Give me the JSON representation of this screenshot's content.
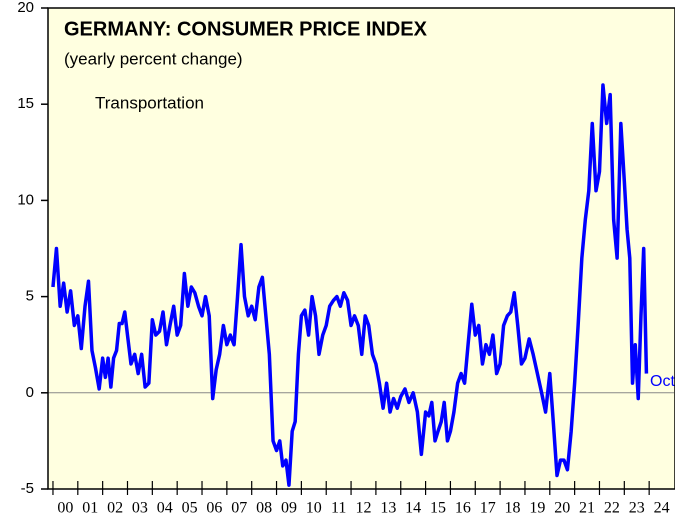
{
  "chart_data": {
    "type": "line",
    "title": "GERMANY: CONSUMER PRICE INDEX",
    "subtitle": "(yearly percent change)",
    "annotations": [
      "Transportation",
      "Oct"
    ],
    "xlim": [
      1999.8,
      2025
    ],
    "ylim": [
      -5,
      20
    ],
    "yticks": [
      -5,
      0,
      5,
      10,
      15,
      20
    ],
    "xticks": [
      {
        "value": 2000,
        "label": "00"
      },
      {
        "value": 2001,
        "label": "01"
      },
      {
        "value": 2002,
        "label": "02"
      },
      {
        "value": 2003,
        "label": "03"
      },
      {
        "value": 2004,
        "label": "04"
      },
      {
        "value": 2005,
        "label": "05"
      },
      {
        "value": 2006,
        "label": "06"
      },
      {
        "value": 2007,
        "label": "07"
      },
      {
        "value": 2008,
        "label": "08"
      },
      {
        "value": 2009,
        "label": "09"
      },
      {
        "value": 2010,
        "label": "10"
      },
      {
        "value": 2011,
        "label": "11"
      },
      {
        "value": 2012,
        "label": "12"
      },
      {
        "value": 2013,
        "label": "13"
      },
      {
        "value": 2014,
        "label": "14"
      },
      {
        "value": 2015,
        "label": "15"
      },
      {
        "value": 2016,
        "label": "16"
      },
      {
        "value": 2017,
        "label": "17"
      },
      {
        "value": 2018,
        "label": "18"
      },
      {
        "value": 2019,
        "label": "19"
      },
      {
        "value": 2020,
        "label": "20"
      },
      {
        "value": 2021,
        "label": "21"
      },
      {
        "value": 2022,
        "label": "22"
      },
      {
        "value": 2023,
        "label": "23"
      },
      {
        "value": 2024,
        "label": "24"
      }
    ],
    "zero_line": true,
    "series": [
      {
        "color": "#0000ff",
        "x": [
          2000.0,
          2000.14,
          2000.29,
          2000.43,
          2000.57,
          2000.71,
          2000.86,
          2001.0,
          2001.14,
          2001.29,
          2001.43,
          2001.57,
          2001.71,
          2001.86,
          2002.0,
          2002.11,
          2002.22,
          2002.33,
          2002.44,
          2002.56,
          2002.67,
          2002.78,
          2002.89,
          2003.0,
          2003.14,
          2003.29,
          2003.43,
          2003.57,
          2003.71,
          2003.86,
          2004.0,
          2004.14,
          2004.29,
          2004.43,
          2004.57,
          2004.71,
          2004.86,
          2005.0,
          2005.14,
          2005.29,
          2005.43,
          2005.57,
          2005.71,
          2005.86,
          2006.0,
          2006.14,
          2006.29,
          2006.43,
          2006.57,
          2006.71,
          2006.86,
          2007.0,
          2007.14,
          2007.29,
          2007.43,
          2007.57,
          2007.71,
          2007.86,
          2008.0,
          2008.14,
          2008.29,
          2008.43,
          2008.57,
          2008.71,
          2008.86,
          2009.0,
          2009.13,
          2009.25,
          2009.38,
          2009.5,
          2009.63,
          2009.75,
          2009.88,
          2010.0,
          2010.14,
          2010.29,
          2010.43,
          2010.57,
          2010.71,
          2010.86,
          2011.0,
          2011.14,
          2011.29,
          2011.43,
          2011.57,
          2011.71,
          2011.86,
          2012.0,
          2012.14,
          2012.29,
          2012.43,
          2012.57,
          2012.71,
          2012.86,
          2013.0,
          2013.14,
          2013.29,
          2013.43,
          2013.57,
          2013.71,
          2013.86,
          2014.0,
          2014.17,
          2014.33,
          2014.5,
          2014.67,
          2014.83,
          2015.0,
          2015.13,
          2015.25,
          2015.38,
          2015.5,
          2015.63,
          2015.75,
          2015.88,
          2016.0,
          2016.14,
          2016.29,
          2016.43,
          2016.57,
          2016.71,
          2016.86,
          2017.0,
          2017.14,
          2017.29,
          2017.43,
          2017.57,
          2017.71,
          2017.86,
          2018.0,
          2018.14,
          2018.29,
          2018.43,
          2018.57,
          2018.71,
          2018.86,
          2019.0,
          2019.17,
          2019.33,
          2019.5,
          2019.67,
          2019.83,
          2020.0,
          2020.14,
          2020.29,
          2020.43,
          2020.57,
          2020.71,
          2020.86,
          2021.0,
          2021.14,
          2021.29,
          2021.43,
          2021.57,
          2021.71,
          2021.86,
          2022.0,
          2022.14,
          2022.29,
          2022.43,
          2022.57,
          2022.71,
          2022.86,
          2023.0,
          2023.11,
          2023.22,
          2023.33,
          2023.44,
          2023.56,
          2023.67,
          2023.78,
          2023.89
        ],
        "values": [
          5.5,
          7.5,
          4.5,
          5.7,
          4.2,
          5.3,
          3.5,
          4.0,
          2.3,
          4.5,
          5.8,
          2.2,
          1.3,
          0.2,
          1.8,
          0.8,
          1.8,
          0.3,
          1.8,
          2.2,
          3.6,
          3.6,
          4.2,
          3.0,
          1.5,
          2.0,
          1.0,
          2.0,
          0.3,
          0.5,
          3.8,
          3.0,
          3.2,
          4.2,
          2.5,
          3.5,
          4.5,
          3.0,
          3.5,
          6.2,
          4.5,
          5.5,
          5.2,
          4.5,
          4.0,
          5.0,
          4.0,
          -0.3,
          1.2,
          2.0,
          3.5,
          2.5,
          3.0,
          2.5,
          5.0,
          7.7,
          5.0,
          4.0,
          4.5,
          3.8,
          5.5,
          6.0,
          4.0,
          2.0,
          -2.5,
          -3.0,
          -2.5,
          -3.8,
          -3.5,
          -4.8,
          -2.0,
          -1.5,
          2.0,
          4.0,
          4.3,
          3.0,
          5.0,
          4.0,
          2.0,
          3.0,
          3.5,
          4.5,
          4.8,
          5.0,
          4.5,
          5.2,
          4.8,
          3.5,
          4.0,
          3.5,
          2.0,
          4.0,
          3.5,
          2.0,
          1.5,
          0.5,
          -0.8,
          0.5,
          -1.0,
          -0.3,
          -0.8,
          -0.2,
          0.2,
          -0.5,
          0.0,
          -1.0,
          -3.2,
          -1.0,
          -1.2,
          -0.5,
          -2.5,
          -2.0,
          -1.5,
          -0.5,
          -2.5,
          -2.0,
          -1.0,
          0.5,
          1.0,
          0.5,
          2.5,
          4.6,
          3.0,
          3.5,
          1.5,
          2.5,
          2.0,
          3.0,
          1.0,
          1.5,
          3.5,
          4.0,
          4.2,
          5.2,
          3.5,
          1.5,
          1.8,
          2.8,
          2.0,
          1.0,
          0.0,
          -1.0,
          1.0,
          -1.5,
          -4.3,
          -3.5,
          -3.5,
          -4.0,
          -2.0,
          0.5,
          3.5,
          7.0,
          9.0,
          10.5,
          14.0,
          10.5,
          11.5,
          16.0,
          14.0,
          15.5,
          9.0,
          7.0,
          14.0,
          11.0,
          8.5,
          7.0,
          0.5,
          2.5,
          -0.3,
          4.0,
          7.5,
          1.0
        ]
      }
    ]
  }
}
